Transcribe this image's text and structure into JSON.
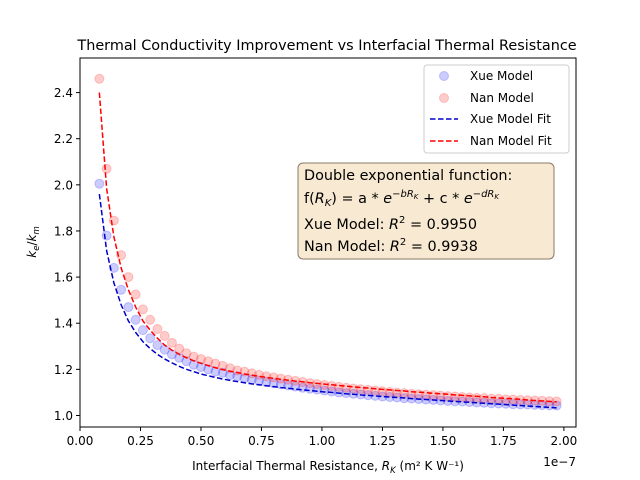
{
  "chart_data": {
    "type": "scatter",
    "title": "Thermal Conductivity Improvement vs Interfacial Thermal Resistance",
    "xlabel": {
      "prefix": "Interfacial Thermal Resistance, ",
      "var": "R",
      "sub": "K",
      "units": " (m² K W⁻¹)"
    },
    "ylabel": {
      "k": "k",
      "e": "e",
      "m": "m"
    },
    "x_offset_label": "1e−7",
    "xlim": [
      0.0,
      2.05
    ],
    "ylim": [
      0.95,
      2.55
    ],
    "x_ticks": [
      0.0,
      0.25,
      0.5,
      0.75,
      1.0,
      1.25,
      1.5,
      1.75,
      2.0
    ],
    "x_tick_labels": [
      "0.00",
      "0.25",
      "0.50",
      "0.75",
      "1.00",
      "1.25",
      "1.50",
      "1.75",
      "2.00"
    ],
    "y_ticks": [
      1.0,
      1.2,
      1.4,
      1.6,
      1.8,
      2.0,
      2.2,
      2.4
    ],
    "y_tick_labels": [
      "1.0",
      "1.2",
      "1.4",
      "1.6",
      "1.8",
      "2.0",
      "2.2",
      "2.4"
    ],
    "grid": false,
    "legend_position": "top-right",
    "x": [
      0.08,
      0.11,
      0.14,
      0.17,
      0.2,
      0.23,
      0.26,
      0.29,
      0.32,
      0.35,
      0.38,
      0.41,
      0.44,
      0.47,
      0.5,
      0.53,
      0.56,
      0.59,
      0.62,
      0.65,
      0.68,
      0.71,
      0.74,
      0.77,
      0.8,
      0.83,
      0.86,
      0.89,
      0.92,
      0.95,
      0.98,
      1.01,
      1.04,
      1.07,
      1.1,
      1.13,
      1.16,
      1.19,
      1.22,
      1.25,
      1.28,
      1.31,
      1.34,
      1.37,
      1.4,
      1.43,
      1.46,
      1.49,
      1.52,
      1.55,
      1.58,
      1.61,
      1.64,
      1.67,
      1.7,
      1.73,
      1.76,
      1.79,
      1.82,
      1.85,
      1.88,
      1.91,
      1.94,
      1.97
    ],
    "series": [
      {
        "name": "Xue Model",
        "kind": "scatter",
        "color": "#0000ff",
        "values": [
          2.005,
          1.78,
          1.64,
          1.545,
          1.47,
          1.415,
          1.37,
          1.335,
          1.305,
          1.285,
          1.265,
          1.25,
          1.235,
          1.22,
          1.21,
          1.2,
          1.19,
          1.185,
          1.175,
          1.17,
          1.162,
          1.156,
          1.15,
          1.145,
          1.14,
          1.135,
          1.13,
          1.125,
          1.12,
          1.116,
          1.112,
          1.108,
          1.104,
          1.1,
          1.097,
          1.094,
          1.091,
          1.088,
          1.085,
          1.082,
          1.08,
          1.078,
          1.075,
          1.073,
          1.071,
          1.069,
          1.067,
          1.065,
          1.063,
          1.061,
          1.06,
          1.058,
          1.056,
          1.055,
          1.053,
          1.052,
          1.051,
          1.049,
          1.048,
          1.047,
          1.046,
          1.045,
          1.044,
          1.043
        ]
      },
      {
        "name": "Nan Model",
        "kind": "scatter",
        "color": "#ff0000",
        "values": [
          2.46,
          2.07,
          1.845,
          1.695,
          1.6,
          1.525,
          1.46,
          1.415,
          1.375,
          1.345,
          1.315,
          1.29,
          1.27,
          1.255,
          1.245,
          1.235,
          1.225,
          1.215,
          1.205,
          1.195,
          1.19,
          1.183,
          1.176,
          1.17,
          1.165,
          1.16,
          1.155,
          1.15,
          1.145,
          1.14,
          1.136,
          1.132,
          1.128,
          1.124,
          1.12,
          1.117,
          1.114,
          1.111,
          1.108,
          1.105,
          1.102,
          1.099,
          1.097,
          1.094,
          1.092,
          1.09,
          1.088,
          1.086,
          1.084,
          1.082,
          1.08,
          1.078,
          1.076,
          1.075,
          1.073,
          1.072,
          1.07,
          1.069,
          1.067,
          1.066,
          1.065,
          1.064,
          1.062,
          1.061
        ]
      },
      {
        "name": "Xue Model Fit",
        "kind": "line",
        "color": "#0000cc",
        "dash": true,
        "values": [
          1.96,
          1.715,
          1.575,
          1.48,
          1.41,
          1.36,
          1.32,
          1.29,
          1.265,
          1.245,
          1.228,
          1.213,
          1.2,
          1.19,
          1.18,
          1.172,
          1.165,
          1.158,
          1.152,
          1.147,
          1.142,
          1.137,
          1.133,
          1.129,
          1.125,
          1.121,
          1.118,
          1.114,
          1.111,
          1.108,
          1.105,
          1.102,
          1.1,
          1.097,
          1.094,
          1.092,
          1.089,
          1.087,
          1.085,
          1.082,
          1.08,
          1.078,
          1.076,
          1.073,
          1.071,
          1.069,
          1.067,
          1.065,
          1.063,
          1.061,
          1.059,
          1.057,
          1.055,
          1.053,
          1.051,
          1.049,
          1.047,
          1.045,
          1.043,
          1.041,
          1.039,
          1.037,
          1.035,
          1.033
        ]
      },
      {
        "name": "Nan Model Fit",
        "kind": "line",
        "color": "#ff0000",
        "dash": true,
        "values": [
          2.4,
          1.985,
          1.775,
          1.64,
          1.545,
          1.47,
          1.41,
          1.37,
          1.335,
          1.305,
          1.283,
          1.265,
          1.25,
          1.237,
          1.226,
          1.216,
          1.207,
          1.199,
          1.192,
          1.186,
          1.18,
          1.175,
          1.17,
          1.165,
          1.161,
          1.157,
          1.153,
          1.149,
          1.146,
          1.142,
          1.139,
          1.136,
          1.133,
          1.13,
          1.127,
          1.124,
          1.121,
          1.119,
          1.116,
          1.113,
          1.111,
          1.108,
          1.106,
          1.103,
          1.101,
          1.099,
          1.096,
          1.094,
          1.092,
          1.089,
          1.087,
          1.085,
          1.083,
          1.081,
          1.078,
          1.076,
          1.074,
          1.072,
          1.07,
          1.067,
          1.065,
          1.063,
          1.061,
          1.059
        ]
      }
    ],
    "annotation": {
      "line1": "Double exponential function:",
      "line2": {
        "f": "f(",
        "R": "R",
        "K": "K",
        "eq": ") = a * ",
        "e1": "e",
        "exp1": "−bR",
        "expK1": "K",
        "plus": " + c * ",
        "e2": "e",
        "exp2": "−dR",
        "expK2": "K"
      },
      "line3": {
        "text": "Xue Model: ",
        "R": "R",
        "sq": "2",
        "val": " = 0.9950"
      },
      "line4": {
        "text": "Nan Model: ",
        "R": "R",
        "sq": "2",
        "val": " = 0.9938"
      },
      "bg_color": "#f8e9d2",
      "border_color": "#8a7a66"
    }
  }
}
